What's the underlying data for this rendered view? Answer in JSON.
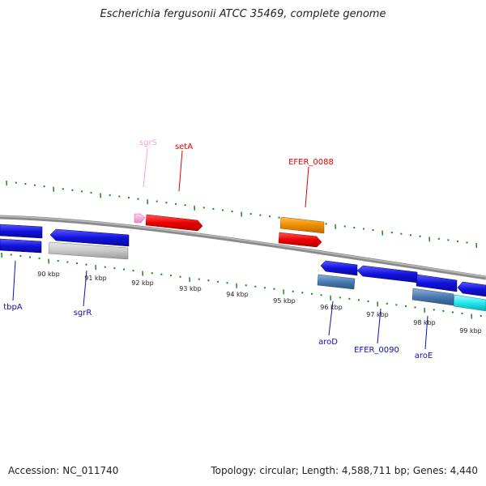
{
  "title": "Escherichia fergusonii ATCC 35469, complete genome",
  "footer": {
    "accession": "Accession: NC_011740",
    "summary": "Topology: circular; Length: 4,588,711 bp; Genes: 4,440"
  },
  "scale_labels": [
    "90 kbp",
    "91 kbp",
    "92 kbp",
    "93 kbp",
    "94 kbp",
    "95 kbp",
    "96 kbp",
    "97 kbp",
    "98 kbp",
    "99 kbp"
  ],
  "gene_labels": [
    {
      "id": "sgrS",
      "text": "sgrS",
      "color": "#f2a6d2"
    },
    {
      "id": "setA",
      "text": "setA",
      "color": "#e00000"
    },
    {
      "id": "efer0088",
      "text": "EFER_0088",
      "color": "#e00000"
    },
    {
      "id": "tbpA",
      "text": "tbpA",
      "color": "#1010aa"
    },
    {
      "id": "sgrR",
      "text": "sgrR",
      "color": "#1010aa"
    },
    {
      "id": "aroD",
      "text": "aroD",
      "color": "#1010aa"
    },
    {
      "id": "efer0090",
      "text": "EFER_0090",
      "color": "#1010aa"
    },
    {
      "id": "aroE",
      "text": "aroE",
      "color": "#1010aa"
    }
  ],
  "colors": {
    "tick": "#1d8a1d",
    "backbone": "#777777",
    "red": "#ee0000",
    "orange": "#f08c00",
    "pink": "#f4a0d8",
    "blue": "#1212dd",
    "steel": "#4a7ab0",
    "grey": "#c8c8c8",
    "cyan": "#22e8f0"
  }
}
